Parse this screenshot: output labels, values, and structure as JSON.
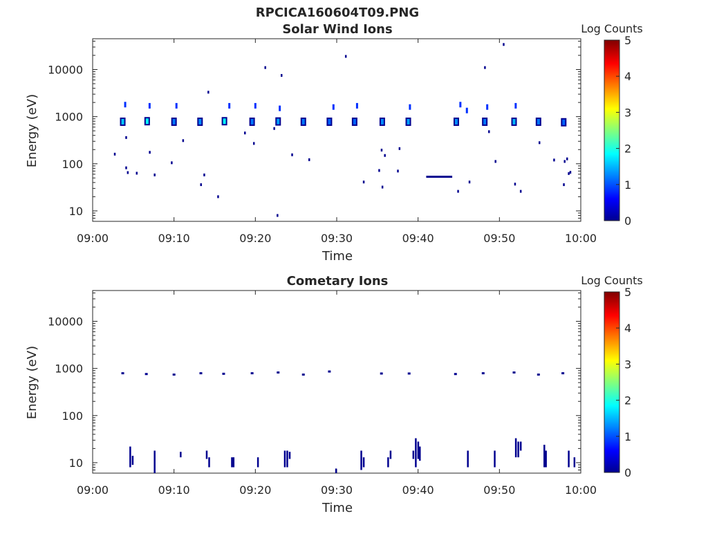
{
  "figure_title": "RPCICA160604T09.PNG",
  "colors": {
    "axis": "#262626",
    "marker_dark": "#00008f",
    "marker_mid": "#0030ff",
    "marker_light": "#00a0ff"
  },
  "chart_data": [
    {
      "type": "heatmap",
      "title": "Solar Wind Ions",
      "xlabel": "Time",
      "ylabel": "Energy (eV)",
      "xlim": [
        "09:00",
        "10:00"
      ],
      "x_ticks": [
        "09:00",
        "09:10",
        "09:20",
        "09:30",
        "09:40",
        "09:50",
        "10:00"
      ],
      "ylim": [
        6,
        45000
      ],
      "y_scale": "log",
      "y_ticks": [
        {
          "value": 10,
          "label": "10"
        },
        {
          "value": 100,
          "label": "100"
        },
        {
          "value": 1000,
          "label": "1000"
        },
        {
          "value": 10000,
          "label": "10000"
        }
      ],
      "colorbar": {
        "label": "Log Counts",
        "range": [
          0,
          5
        ],
        "ticks": [
          "0",
          "1",
          "2",
          "3",
          "4",
          "5"
        ],
        "colormap": "jet"
      },
      "clusters": [
        {
          "t": 3.7,
          "e": 780,
          "level": 1.6
        },
        {
          "t": 6.7,
          "e": 800,
          "level": 1.9
        },
        {
          "t": 10.0,
          "e": 780,
          "level": 1.2
        },
        {
          "t": 13.2,
          "e": 780,
          "level": 1.3
        },
        {
          "t": 16.2,
          "e": 800,
          "level": 1.9
        },
        {
          "t": 19.6,
          "e": 780,
          "level": 1.2
        },
        {
          "t": 22.8,
          "e": 790,
          "level": 1.4
        },
        {
          "t": 25.9,
          "e": 780,
          "level": 1.2
        },
        {
          "t": 29.1,
          "e": 780,
          "level": 1.1
        },
        {
          "t": 32.2,
          "e": 780,
          "level": 1.1
        },
        {
          "t": 35.6,
          "e": 780,
          "level": 1.3
        },
        {
          "t": 38.8,
          "e": 780,
          "level": 1.4
        },
        {
          "t": 44.7,
          "e": 780,
          "level": 1.3
        },
        {
          "t": 48.2,
          "e": 780,
          "level": 1.2
        },
        {
          "t": 51.8,
          "e": 780,
          "level": 1.5
        },
        {
          "t": 54.8,
          "e": 780,
          "level": 1.2
        },
        {
          "t": 57.9,
          "e": 760,
          "level": 1.1
        }
      ],
      "upper_points": [
        {
          "t": 4.0,
          "e": 1800
        },
        {
          "t": 7.0,
          "e": 1700
        },
        {
          "t": 10.3,
          "e": 1700
        },
        {
          "t": 16.8,
          "e": 1700
        },
        {
          "t": 20.0,
          "e": 1700
        },
        {
          "t": 23.0,
          "e": 1500
        },
        {
          "t": 29.6,
          "e": 1600
        },
        {
          "t": 32.5,
          "e": 1700
        },
        {
          "t": 39.0,
          "e": 1600
        },
        {
          "t": 45.2,
          "e": 1800
        },
        {
          "t": 46.0,
          "e": 1350
        },
        {
          "t": 48.5,
          "e": 1600
        },
        {
          "t": 52.0,
          "e": 1700
        }
      ],
      "scatter": [
        {
          "t": 2.7,
          "e": 160
        },
        {
          "t": 4.1,
          "e": 360
        },
        {
          "t": 4.1,
          "e": 82
        },
        {
          "t": 4.3,
          "e": 65
        },
        {
          "t": 5.4,
          "e": 63
        },
        {
          "t": 7.0,
          "e": 175
        },
        {
          "t": 7.6,
          "e": 58
        },
        {
          "t": 9.7,
          "e": 105
        },
        {
          "t": 11.1,
          "e": 310
        },
        {
          "t": 13.3,
          "e": 36
        },
        {
          "t": 13.7,
          "e": 58
        },
        {
          "t": 14.2,
          "e": 3300
        },
        {
          "t": 15.4,
          "e": 20
        },
        {
          "t": 18.7,
          "e": 450
        },
        {
          "t": 19.8,
          "e": 270
        },
        {
          "t": 21.2,
          "e": 11000
        },
        {
          "t": 22.3,
          "e": 560
        },
        {
          "t": 23.2,
          "e": 7500
        },
        {
          "t": 24.5,
          "e": 155
        },
        {
          "t": 26.6,
          "e": 122
        },
        {
          "t": 31.1,
          "e": 19000
        },
        {
          "t": 33.3,
          "e": 41
        },
        {
          "t": 35.2,
          "e": 72
        },
        {
          "t": 35.5,
          "e": 195
        },
        {
          "t": 35.9,
          "e": 150
        },
        {
          "t": 35.6,
          "e": 32
        },
        {
          "t": 37.5,
          "e": 70
        },
        {
          "t": 37.7,
          "e": 210
        },
        {
          "t": 44.9,
          "e": 26
        },
        {
          "t": 46.3,
          "e": 41
        },
        {
          "t": 48.2,
          "e": 11000
        },
        {
          "t": 48.7,
          "e": 480
        },
        {
          "t": 49.5,
          "e": 112
        },
        {
          "t": 50.5,
          "e": 34000
        },
        {
          "t": 51.9,
          "e": 37
        },
        {
          "t": 52.6,
          "e": 26
        },
        {
          "t": 54.9,
          "e": 280
        },
        {
          "t": 56.7,
          "e": 120
        },
        {
          "t": 57.9,
          "e": 36
        },
        {
          "t": 58.0,
          "e": 112
        },
        {
          "t": 58.3,
          "e": 127
        },
        {
          "t": 58.5,
          "e": 62
        },
        {
          "t": 58.7,
          "e": 66
        },
        {
          "t": 22.7,
          "e": 8
        }
      ],
      "bars": [
        {
          "t_start": 41.0,
          "t_end": 44.2,
          "e": 53
        }
      ]
    },
    {
      "type": "heatmap",
      "title": "Cometary Ions",
      "xlabel": "Time",
      "ylabel": "Energy (eV)",
      "xlim": [
        "09:00",
        "10:00"
      ],
      "x_ticks": [
        "09:00",
        "09:10",
        "09:20",
        "09:30",
        "09:40",
        "09:50",
        "10:00"
      ],
      "ylim": [
        6,
        45000
      ],
      "y_scale": "log",
      "y_ticks": [
        {
          "value": 10,
          "label": "10"
        },
        {
          "value": 100,
          "label": "100"
        },
        {
          "value": 1000,
          "label": "1000"
        },
        {
          "value": 10000,
          "label": "10000"
        }
      ],
      "colorbar": {
        "label": "Log Counts",
        "range": [
          0,
          5
        ],
        "ticks": [
          "0",
          "1",
          "2",
          "3",
          "4",
          "5"
        ],
        "colormap": "jet"
      },
      "points_1000": [
        {
          "t": 3.7,
          "e": 790
        },
        {
          "t": 6.6,
          "e": 760
        },
        {
          "t": 10.0,
          "e": 740
        },
        {
          "t": 13.3,
          "e": 790
        },
        {
          "t": 16.1,
          "e": 770
        },
        {
          "t": 19.6,
          "e": 790
        },
        {
          "t": 22.8,
          "e": 820
        },
        {
          "t": 25.9,
          "e": 740
        },
        {
          "t": 29.1,
          "e": 860
        },
        {
          "t": 35.5,
          "e": 780
        },
        {
          "t": 38.9,
          "e": 780
        },
        {
          "t": 44.6,
          "e": 760
        },
        {
          "t": 48.0,
          "e": 790
        },
        {
          "t": 51.8,
          "e": 820
        },
        {
          "t": 54.8,
          "e": 740
        },
        {
          "t": 57.8,
          "e": 790
        }
      ],
      "vertical_streaks": [
        {
          "t": 4.6,
          "e_low": 8,
          "e_high": 22
        },
        {
          "t": 4.9,
          "e_low": 9,
          "e_high": 14
        },
        {
          "t": 7.6,
          "e_low": 6,
          "e_high": 18
        },
        {
          "t": 10.8,
          "e_low": 13,
          "e_high": 17
        },
        {
          "t": 14.0,
          "e_low": 12,
          "e_high": 18
        },
        {
          "t": 14.3,
          "e_low": 8,
          "e_high": 13
        },
        {
          "t": 17.1,
          "e_low": 8,
          "e_high": 13
        },
        {
          "t": 17.3,
          "e_low": 8,
          "e_high": 13
        },
        {
          "t": 20.3,
          "e_low": 8,
          "e_high": 13
        },
        {
          "t": 23.6,
          "e_low": 8,
          "e_high": 18
        },
        {
          "t": 23.9,
          "e_low": 8,
          "e_high": 18
        },
        {
          "t": 24.2,
          "e_low": 12,
          "e_high": 17
        },
        {
          "t": 29.9,
          "e_low": 6,
          "e_high": 7.5
        },
        {
          "t": 33.0,
          "e_low": 7,
          "e_high": 18
        },
        {
          "t": 33.3,
          "e_low": 8,
          "e_high": 13
        },
        {
          "t": 36.3,
          "e_low": 8,
          "e_high": 13
        },
        {
          "t": 36.6,
          "e_low": 12,
          "e_high": 18
        },
        {
          "t": 39.4,
          "e_low": 12,
          "e_high": 18
        },
        {
          "t": 39.7,
          "e_low": 8,
          "e_high": 33
        },
        {
          "t": 40.0,
          "e_low": 12,
          "e_high": 28
        },
        {
          "t": 40.2,
          "e_low": 11,
          "e_high": 22
        },
        {
          "t": 46.1,
          "e_low": 8,
          "e_high": 18
        },
        {
          "t": 49.4,
          "e_low": 8,
          "e_high": 18
        },
        {
          "t": 52.0,
          "e_low": 13,
          "e_high": 33
        },
        {
          "t": 52.3,
          "e_low": 13,
          "e_high": 28
        },
        {
          "t": 52.6,
          "e_low": 18,
          "e_high": 28
        },
        {
          "t": 55.5,
          "e_low": 8,
          "e_high": 24
        },
        {
          "t": 55.7,
          "e_low": 8,
          "e_high": 18
        },
        {
          "t": 58.5,
          "e_low": 8,
          "e_high": 18
        },
        {
          "t": 59.2,
          "e_low": 8,
          "e_high": 13
        }
      ]
    }
  ]
}
